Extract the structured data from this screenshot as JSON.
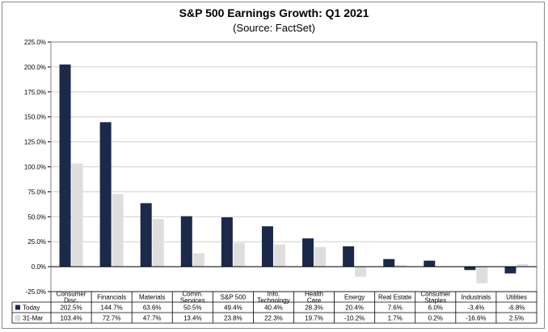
{
  "colors": {
    "today": "#1b2a4a",
    "mar31": "#dedede",
    "grid": "#cfcfcf",
    "axis": "#000000"
  },
  "chart_data": {
    "type": "bar",
    "title": "S&P 500 Earnings Growth: Q1 2021",
    "subtitle": "(Source: FactSet)",
    "categories": [
      [
        "Consumer",
        "Disc."
      ],
      [
        "Financials"
      ],
      [
        "Materials"
      ],
      [
        "Comm.",
        "Services"
      ],
      [
        "S&P 500"
      ],
      [
        "Info.",
        "Technology"
      ],
      [
        "Health",
        "Care"
      ],
      [
        "Energy"
      ],
      [
        "Real Estate"
      ],
      [
        "Consumer",
        "Staples"
      ],
      [
        "Industrials"
      ],
      [
        "Utilities"
      ]
    ],
    "series": [
      {
        "name": "Today",
        "values": [
          202.5,
          144.7,
          63.6,
          50.5,
          49.4,
          40.4,
          28.3,
          20.4,
          7.6,
          6.0,
          -3.4,
          -6.8
        ],
        "labels": [
          "202.5%",
          "144.7%",
          "63.6%",
          "50.5%",
          "49.4%",
          "40.4%",
          "28.3%",
          "20.4%",
          "7.6%",
          "6.0%",
          "-3.4%",
          "-6.8%"
        ]
      },
      {
        "name": "31-Mar",
        "values": [
          103.4,
          72.7,
          47.7,
          13.4,
          23.8,
          22.3,
          19.7,
          -10.2,
          1.7,
          0.2,
          -16.6,
          2.5
        ],
        "labels": [
          "103.4%",
          "72.7%",
          "47.7%",
          "13.4%",
          "23.8%",
          "22.3%",
          "19.7%",
          "-10.2%",
          "1.7%",
          "0.2%",
          "-16.6%",
          "2.5%"
        ]
      }
    ],
    "ylim": [
      -25,
      225
    ],
    "yticks": [
      -25,
      0,
      25,
      50,
      75,
      100,
      125,
      150,
      175,
      200,
      225
    ],
    "ytick_labels": [
      "-25.0%",
      "0.0%",
      "25.0%",
      "50.0%",
      "75.0%",
      "100.0%",
      "125.0%",
      "150.0%",
      "175.0%",
      "200.0%",
      "225.0%"
    ],
    "legend": "data table below chart",
    "grid": true
  }
}
